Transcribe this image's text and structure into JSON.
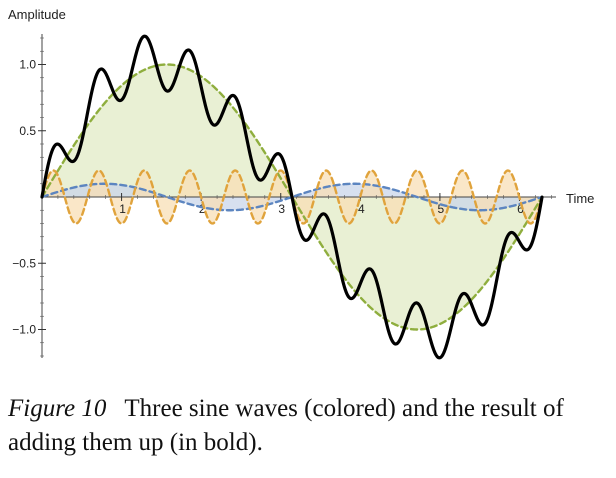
{
  "chart_data": {
    "type": "line",
    "ylabel": "Amplitude",
    "xlabel": "Time",
    "xlim": [
      0,
      6.283
    ],
    "ylim": [
      -1.2,
      1.2
    ],
    "x_ticks": [
      1,
      2,
      3,
      4,
      5,
      6
    ],
    "y_ticks": [
      -1.0,
      -0.5,
      0.5,
      1.0
    ],
    "y_tick_labels": [
      "−1.0",
      "−0.5",
      "0.5",
      "1.0"
    ],
    "series": [
      {
        "role": "component",
        "formula": "sin(t)",
        "amplitude": 1.0,
        "frequency": 1,
        "color": "#8fae3e",
        "fill": "#e2ebc6",
        "style": "dashed"
      },
      {
        "role": "component",
        "formula": "0.1*sin(2t)",
        "amplitude": 0.1,
        "frequency": 2,
        "color": "#5c85c0",
        "fill": "#c9d6ea",
        "style": "dashed"
      },
      {
        "role": "component",
        "formula": "0.2*sin(11t)",
        "amplitude": 0.2,
        "frequency": 11,
        "color": "#e0a33c",
        "fill": "#f8dfb6",
        "style": "dashed"
      },
      {
        "role": "sum",
        "formula": "sin(t) + 0.1*sin(2t) + 0.2*sin(11t)",
        "color": "#000000",
        "style": "solid-bold"
      }
    ]
  },
  "caption": {
    "label": "Figure 10",
    "text": "Three sine waves (colored) and the result of adding them up (in bold)."
  }
}
